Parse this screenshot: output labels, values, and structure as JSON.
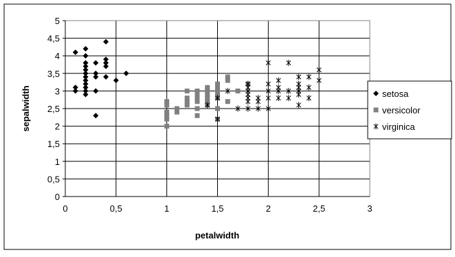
{
  "chart_data": {
    "type": "scatter",
    "xlabel": "petalwidth",
    "ylabel": "sepalwidth",
    "xlim": [
      0,
      3
    ],
    "ylim": [
      0,
      5
    ],
    "x_ticks": [
      "0",
      "0,5",
      "1",
      "1,5",
      "2",
      "2,5",
      "3"
    ],
    "y_ticks": [
      "0",
      "0,5",
      "1",
      "1,5",
      "2",
      "2,5",
      "3",
      "3,5",
      "4",
      "4,5",
      "5"
    ],
    "grid": "major gridlines on both axes",
    "legend_position": "right",
    "series": [
      {
        "name": "setosa",
        "marker": "diamond",
        "color": "#000000",
        "points": [
          [
            0.1,
            3.0
          ],
          [
            0.1,
            3.1
          ],
          [
            0.1,
            4.1
          ],
          [
            0.2,
            2.9
          ],
          [
            0.2,
            3.0
          ],
          [
            0.2,
            3.1
          ],
          [
            0.2,
            3.2
          ],
          [
            0.2,
            3.3
          ],
          [
            0.2,
            3.4
          ],
          [
            0.2,
            3.5
          ],
          [
            0.2,
            3.6
          ],
          [
            0.2,
            3.7
          ],
          [
            0.2,
            3.8
          ],
          [
            0.2,
            4.0
          ],
          [
            0.2,
            4.2
          ],
          [
            0.3,
            2.3
          ],
          [
            0.3,
            3.0
          ],
          [
            0.3,
            3.4
          ],
          [
            0.3,
            3.5
          ],
          [
            0.3,
            3.8
          ],
          [
            0.4,
            3.4
          ],
          [
            0.4,
            3.7
          ],
          [
            0.4,
            3.8
          ],
          [
            0.4,
            3.9
          ],
          [
            0.4,
            4.4
          ],
          [
            0.5,
            3.3
          ],
          [
            0.6,
            3.5
          ]
        ]
      },
      {
        "name": "versicolor",
        "marker": "square",
        "color": "#808080",
        "points": [
          [
            1.0,
            2.0
          ],
          [
            1.0,
            2.2
          ],
          [
            1.0,
            2.3
          ],
          [
            1.0,
            2.4
          ],
          [
            1.0,
            2.6
          ],
          [
            1.0,
            2.7
          ],
          [
            1.1,
            2.4
          ],
          [
            1.1,
            2.5
          ],
          [
            1.2,
            2.6
          ],
          [
            1.2,
            2.7
          ],
          [
            1.2,
            2.8
          ],
          [
            1.2,
            3.0
          ],
          [
            1.3,
            2.3
          ],
          [
            1.3,
            2.5
          ],
          [
            1.3,
            2.7
          ],
          [
            1.3,
            2.8
          ],
          [
            1.3,
            2.9
          ],
          [
            1.3,
            3.0
          ],
          [
            1.4,
            2.6
          ],
          [
            1.4,
            2.7
          ],
          [
            1.4,
            2.8
          ],
          [
            1.4,
            2.9
          ],
          [
            1.4,
            3.0
          ],
          [
            1.4,
            3.1
          ],
          [
            1.5,
            2.2
          ],
          [
            1.5,
            2.5
          ],
          [
            1.5,
            2.8
          ],
          [
            1.5,
            2.9
          ],
          [
            1.5,
            3.0
          ],
          [
            1.5,
            3.1
          ],
          [
            1.5,
            3.2
          ],
          [
            1.6,
            2.7
          ],
          [
            1.6,
            3.3
          ],
          [
            1.6,
            3.4
          ],
          [
            1.7,
            3.0
          ],
          [
            1.8,
            3.2
          ]
        ]
      },
      {
        "name": "virginica",
        "marker": "asterisk",
        "color": "#000000",
        "points": [
          [
            1.4,
            2.6
          ],
          [
            1.5,
            2.2
          ],
          [
            1.5,
            2.8
          ],
          [
            1.6,
            3.0
          ],
          [
            1.7,
            2.5
          ],
          [
            1.8,
            2.5
          ],
          [
            1.8,
            2.7
          ],
          [
            1.8,
            2.8
          ],
          [
            1.8,
            2.9
          ],
          [
            1.8,
            3.0
          ],
          [
            1.8,
            3.1
          ],
          [
            1.8,
            3.2
          ],
          [
            1.9,
            2.5
          ],
          [
            1.9,
            2.7
          ],
          [
            1.9,
            2.8
          ],
          [
            2.0,
            2.5
          ],
          [
            2.0,
            2.8
          ],
          [
            2.0,
            3.0
          ],
          [
            2.0,
            3.2
          ],
          [
            2.0,
            3.8
          ],
          [
            2.1,
            2.8
          ],
          [
            2.1,
            3.0
          ],
          [
            2.1,
            3.1
          ],
          [
            2.1,
            3.3
          ],
          [
            2.2,
            2.8
          ],
          [
            2.2,
            3.0
          ],
          [
            2.2,
            3.8
          ],
          [
            2.3,
            2.6
          ],
          [
            2.3,
            2.9
          ],
          [
            2.3,
            3.0
          ],
          [
            2.3,
            3.1
          ],
          [
            2.3,
            3.2
          ],
          [
            2.3,
            3.4
          ],
          [
            2.4,
            2.8
          ],
          [
            2.4,
            3.1
          ],
          [
            2.4,
            3.4
          ],
          [
            2.5,
            3.3
          ],
          [
            2.5,
            3.6
          ]
        ]
      }
    ]
  }
}
